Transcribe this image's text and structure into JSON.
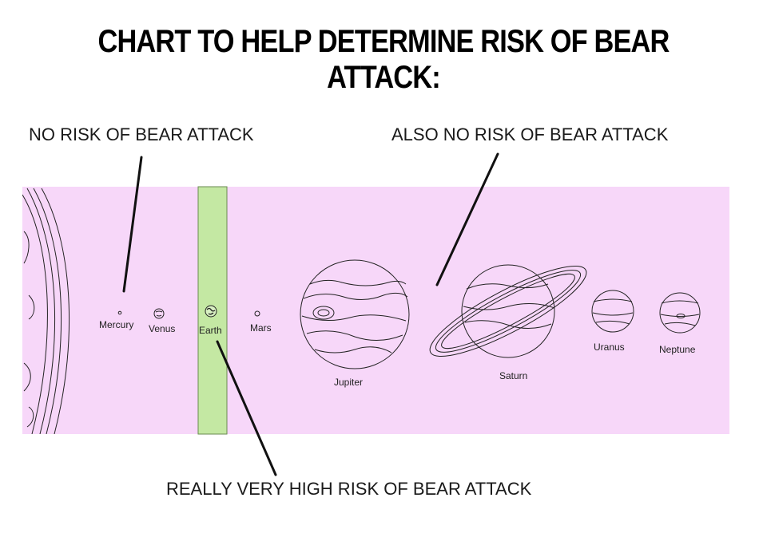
{
  "title": "CHART TO HELP DETERMINE RISK OF BEAR ATTACK:",
  "callouts": {
    "left": "NO RISK OF BEAR ATTACK",
    "right": "ALSO NO RISK OF BEAR ATTACK",
    "bottom": "REALLY VERY HIGH RISK OF BEAR ATTACK"
  },
  "planets": {
    "mercury": "Mercury",
    "venus": "Venus",
    "earth": "Earth",
    "mars": "Mars",
    "jupiter": "Jupiter",
    "saturn": "Saturn",
    "uranus": "Uranus",
    "neptune": "Neptune"
  },
  "colors": {
    "band_background": "#f7d7f9",
    "earth_highlight": "#c4e8a3",
    "line_art": "#222222"
  }
}
